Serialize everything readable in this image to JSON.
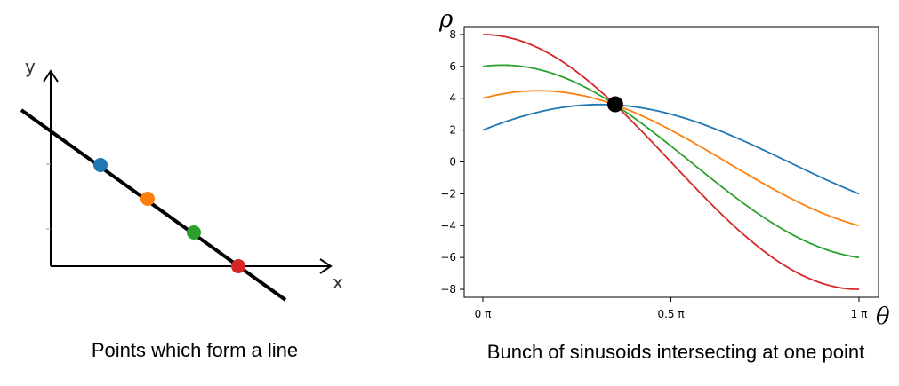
{
  "chart_data": [
    {
      "type": "scatter",
      "title": "",
      "xlabel": "x",
      "ylabel": "y",
      "line": {
        "color": "#000000"
      },
      "points": [
        {
          "color": "#1f77b4"
        },
        {
          "color": "#ff7f0e"
        },
        {
          "color": "#2ca02c"
        },
        {
          "color": "#d62728"
        }
      ],
      "caption": "Points which form a line"
    },
    {
      "type": "line",
      "title": "",
      "xlabel": "θ",
      "ylabel": "ρ",
      "xlim": [
        0,
        1
      ],
      "ylim": [
        -8.5,
        8.5
      ],
      "xticks": [
        0,
        0.5,
        1
      ],
      "xtick_labels": [
        "0 π",
        "0.5 π",
        "1 π"
      ],
      "yticks": [
        8,
        6,
        4,
        2,
        0,
        -2,
        -4,
        -6,
        -8
      ],
      "ytick_labels": [
        "8",
        "6",
        "4",
        "2",
        "0",
        "−2",
        "−4",
        "−6",
        "−8"
      ],
      "series": [
        {
          "color": "#1f77b4",
          "rho_at_0": 2,
          "rho_at_half_pi": 3,
          "rho_at_pi": -2
        },
        {
          "color": "#ff7f0e",
          "rho_at_0": 4,
          "rho_at_half_pi": 2,
          "rho_at_pi": -4
        },
        {
          "color": "#2ca02c",
          "rho_at_0": 6,
          "rho_at_half_pi": 1,
          "rho_at_pi": -6
        },
        {
          "color": "#d62728",
          "rho_at_0": 8,
          "rho_at_half_pi": 0,
          "rho_at_pi": -8
        }
      ],
      "intersection": {
        "theta": 0.352,
        "rho": 3.62,
        "color": "#000000"
      },
      "caption": "Bunch of sinusoids intersecting at one point"
    }
  ]
}
